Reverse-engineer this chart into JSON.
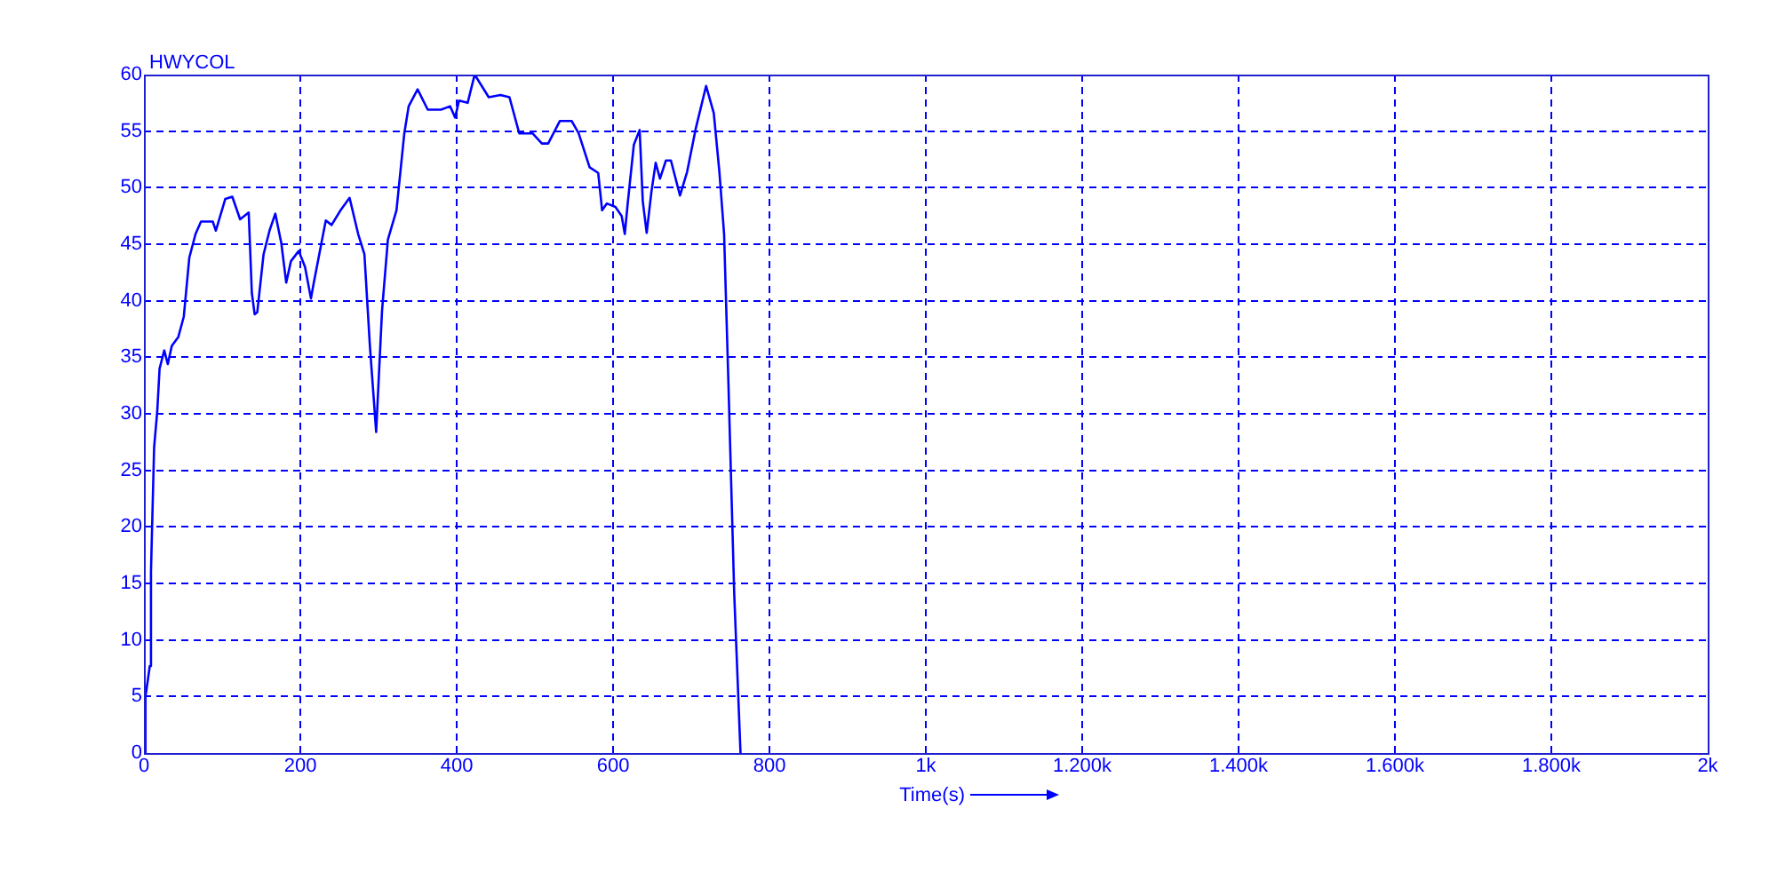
{
  "chart_data": {
    "type": "line",
    "title": "HWYCOL",
    "xlabel": "Time(s)",
    "xlim": [
      0,
      2000
    ],
    "xticks": [
      0,
      200,
      400,
      600,
      800,
      {
        "value": 1000,
        "label": "1k"
      },
      {
        "value": 1200,
        "label": "1.200k"
      },
      {
        "value": 1400,
        "label": "1.400k"
      },
      {
        "value": 1600,
        "label": "1.600k"
      },
      {
        "value": 1800,
        "label": "1.800k"
      },
      {
        "value": 2000,
        "label": "2k"
      }
    ],
    "ylim": [
      0,
      60
    ],
    "yticks": [
      0,
      5,
      10,
      15,
      20,
      25,
      30,
      35,
      40,
      45,
      50,
      55,
      60
    ],
    "grid": true,
    "legend": false,
    "marker": "none",
    "line_style": "solid",
    "series": [
      {
        "color": "#0000ff",
        "x": [
          1.5,
          2,
          7.5,
          9,
          13,
          17,
          20,
          26,
          30.5,
          35.6,
          44,
          51,
          58,
          66,
          73,
          88,
          92,
          104,
          113,
          123,
          134,
          138,
          141.6,
          145,
          153,
          160.6,
          168,
          175.7,
          182,
          188,
          198,
          206,
          213.6,
          217,
          227,
          232.6,
          240,
          251.5,
          263,
          274,
          282,
          289,
          297,
          304.5,
          312,
          323,
          333,
          338.6,
          350,
          363,
          380,
          391.6,
          398,
          403,
          414,
          423,
          441,
          456,
          467.5,
          480,
          497,
          509,
          517,
          532,
          547,
          556,
          570,
          581,
          586,
          592,
          603,
          611,
          615,
          619,
          626.6,
          634,
          638,
          643,
          649,
          654.5,
          660,
          667.6,
          674,
          685.6,
          694.7,
          706,
          719,
          728.8,
          736,
          742,
          747.7,
          755,
          763
        ],
        "values": [
          0,
          5,
          7.7,
          16,
          27,
          30.2,
          34,
          35.6,
          34.4,
          36,
          36.8,
          38.6,
          43.8,
          45.9,
          47,
          47,
          46.2,
          49,
          49.2,
          47.2,
          47.8,
          40.7,
          38.8,
          39,
          44.1,
          46.2,
          47.7,
          45.1,
          41.6,
          43.5,
          44.4,
          43,
          40.2,
          41.5,
          45.1,
          47.1,
          46.7,
          48,
          49.1,
          45.9,
          44.1,
          36,
          28.4,
          39.1,
          45.4,
          48,
          54.8,
          57.2,
          58.7,
          56.9,
          56.9,
          57.2,
          56.2,
          57.7,
          57.5,
          60,
          58,
          58.2,
          58,
          54.8,
          54.8,
          53.9,
          53.9,
          55.9,
          55.9,
          54.8,
          51.8,
          51.3,
          48,
          48.6,
          48.3,
          47.5,
          45.9,
          48.8,
          53.8,
          55.1,
          48.8,
          46,
          49.6,
          52.2,
          50.8,
          52.4,
          52.4,
          49.3,
          51.4,
          55.3,
          59,
          56.6,
          51.4,
          45.9,
          32.3,
          14,
          0
        ]
      }
    ]
  }
}
